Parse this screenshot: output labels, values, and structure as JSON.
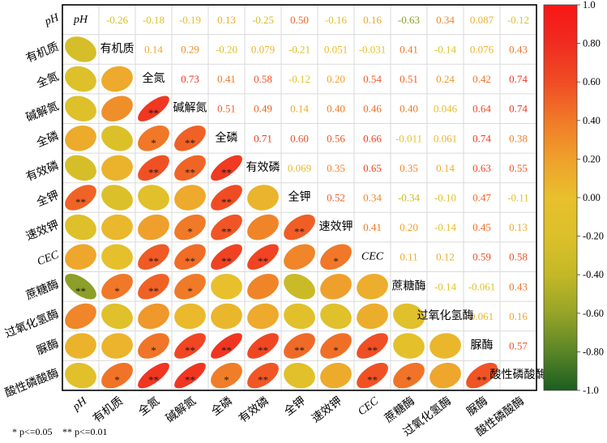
{
  "chart_data": {
    "type": "heatmap",
    "variables": [
      "pH",
      "有机质",
      "全氮",
      "碱解氮",
      "全磷",
      "有效磷",
      "全钾",
      "速效钾",
      "CEC",
      "蔗糖酶",
      "过氧化氢酶",
      "脲酶",
      "酸性磷酸酶"
    ],
    "upper": [
      [
        "-0.26",
        "-0.18",
        "-0.19",
        "0.13",
        "-0.25",
        "0.50",
        "-0.16",
        "0.16",
        "-0.63",
        "0.34",
        "0.087",
        "-0.12"
      ],
      [
        "0.14",
        "0.29",
        "-0.20",
        "0.079",
        "-0.21",
        "0.051",
        "-0.031",
        "0.41",
        "-0.14",
        "0.076",
        "0.43"
      ],
      [
        "0.73",
        "0.41",
        "0.58",
        "-0.12",
        "0.20",
        "0.54",
        "0.51",
        "0.24",
        "0.42",
        "0.74"
      ],
      [
        "0.51",
        "0.49",
        "0.14",
        "0.40",
        "0.46",
        "0.40",
        "0.046",
        "0.64",
        "0.74"
      ],
      [
        "0.71",
        "0.60",
        "0.56",
        "0.66",
        "-0.011",
        "0.061",
        "0.74",
        "0.38"
      ],
      [
        "0.069",
        "0.35",
        "0.65",
        "0.35",
        "0.14",
        "0.63",
        "0.55"
      ],
      [
        "0.52",
        "0.34",
        "-0.34",
        "-0.10",
        "0.47",
        "-0.11"
      ],
      [
        "0.41",
        "0.20",
        "-0.14",
        "0.45",
        "0.13"
      ],
      [
        "0.11",
        "0.12",
        "0.59",
        "0.58"
      ],
      [
        "-0.14",
        "-0.061",
        "0.43"
      ],
      [
        "0.061",
        "0.16"
      ],
      [
        "0.57"
      ]
    ],
    "significance": [
      [
        ""
      ],
      [
        "",
        ""
      ],
      [
        "",
        "",
        "**"
      ],
      [
        "",
        "",
        "*",
        "**"
      ],
      [
        "",
        "",
        "**",
        "**",
        "**"
      ],
      [
        "**",
        "",
        "",
        "",
        "**",
        ""
      ],
      [
        "",
        "",
        "",
        "*",
        "**",
        "",
        "**"
      ],
      [
        "",
        "",
        "**",
        "**",
        "**",
        "**",
        "",
        "*"
      ],
      [
        "**",
        "*",
        "**",
        "*",
        "",
        "",
        "",
        "",
        ""
      ],
      [
        "",
        "",
        "",
        "",
        "",
        "",
        "",
        "",
        "",
        ""
      ],
      [
        "",
        "",
        "*",
        "**",
        "**",
        "**",
        "**",
        "*",
        "**",
        "",
        ""
      ],
      [
        "",
        "*",
        "**",
        "**",
        "*",
        "**",
        "",
        "",
        "**",
        "*",
        "",
        "**"
      ]
    ],
    "significance_legend": [
      "* p<=0.05",
      "** p<=0.01"
    ],
    "colorbar": {
      "range": [
        -1,
        1
      ],
      "ticks": [
        "1.0",
        "0.80",
        "0.60",
        "0.40",
        "0.20",
        "0.00",
        "-0.20",
        "-0.40",
        "-0.60",
        "-0.80",
        "-1.0"
      ]
    },
    "colorscale": [
      {
        "value": -1.0,
        "color": "#1b5e20"
      },
      {
        "value": -0.8,
        "color": "#5a8526"
      },
      {
        "value": -0.6,
        "color": "#96a428"
      },
      {
        "value": -0.4,
        "color": "#c4b826"
      },
      {
        "value": -0.2,
        "color": "#dcc02a"
      },
      {
        "value": 0.0,
        "color": "#e8c02c"
      },
      {
        "value": 0.2,
        "color": "#efa02c"
      },
      {
        "value": 0.4,
        "color": "#f07a28"
      },
      {
        "value": 0.6,
        "color": "#f04c24"
      },
      {
        "value": 0.8,
        "color": "#f02c20"
      },
      {
        "value": 1.0,
        "color": "#f81616"
      }
    ]
  }
}
